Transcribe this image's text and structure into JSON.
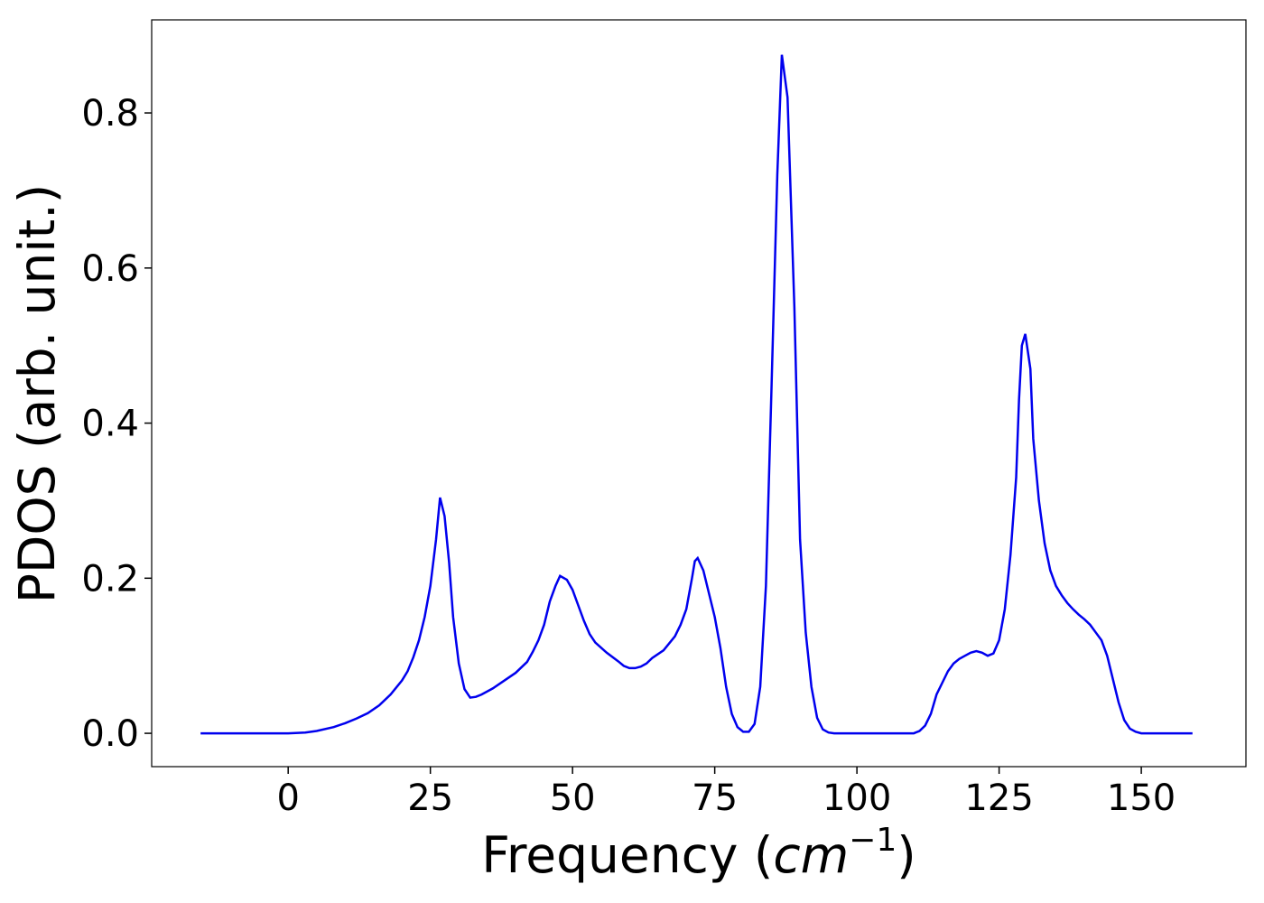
{
  "chart_data": {
    "type": "line",
    "xlabel": [
      "Frequency (",
      "cm",
      "−1",
      ")"
    ],
    "ylabel": "PDOS (arb. unit.)",
    "xlim": [
      -24,
      168.4
    ],
    "ylim": [
      -0.043,
      0.92
    ],
    "xticks": [
      0,
      25,
      50,
      75,
      100,
      125,
      150
    ],
    "yticks": [
      {
        "value": 0,
        "label": "0.0"
      },
      0.2,
      0.4,
      0.6,
      0.8
    ],
    "grid": false,
    "series": [
      {
        "color": "#0000ee",
        "x": [
          -15.4,
          -10,
          -5,
          0,
          3,
          5,
          8,
          10,
          12,
          14,
          16,
          18,
          20,
          21,
          22,
          23,
          24,
          25,
          26,
          26.7,
          27.5,
          28.3,
          29,
          30,
          31,
          32,
          33,
          34,
          36,
          38,
          40,
          42,
          43,
          44,
          45,
          46,
          47,
          47.8,
          49,
          50,
          51,
          52,
          53,
          54,
          56,
          58,
          59,
          60,
          61,
          62,
          63,
          64,
          66,
          68,
          69,
          70,
          71,
          71.5,
          72,
          73,
          74,
          75,
          76,
          77,
          78,
          79,
          80,
          81,
          82,
          83,
          84,
          85,
          86,
          86.8,
          87.8,
          89,
          90,
          91,
          92,
          93,
          94,
          95,
          96,
          100,
          105,
          110,
          111,
          112,
          113,
          114,
          115,
          116,
          117,
          118,
          119,
          120,
          121,
          122,
          123,
          124,
          125,
          126,
          127,
          128,
          128.5,
          129,
          129.6,
          130.5,
          131,
          132,
          133,
          134,
          135,
          136,
          137,
          138,
          139,
          140,
          141,
          142,
          143,
          144,
          145,
          146,
          147,
          148,
          149,
          150,
          155,
          159
        ],
        "values": [
          0,
          0,
          0,
          0,
          0.001,
          0.003,
          0.008,
          0.013,
          0.019,
          0.026,
          0.036,
          0.05,
          0.068,
          0.08,
          0.098,
          0.12,
          0.15,
          0.19,
          0.25,
          0.304,
          0.28,
          0.22,
          0.15,
          0.09,
          0.057,
          0.046,
          0.047,
          0.05,
          0.058,
          0.068,
          0.078,
          0.092,
          0.105,
          0.12,
          0.14,
          0.17,
          0.19,
          0.203,
          0.198,
          0.185,
          0.165,
          0.145,
          0.128,
          0.117,
          0.104,
          0.093,
          0.087,
          0.084,
          0.084,
          0.086,
          0.09,
          0.097,
          0.107,
          0.125,
          0.14,
          0.16,
          0.2,
          0.222,
          0.226,
          0.21,
          0.18,
          0.15,
          0.11,
          0.06,
          0.025,
          0.008,
          0.002,
          0.002,
          0.012,
          0.06,
          0.19,
          0.45,
          0.72,
          0.875,
          0.82,
          0.55,
          0.25,
          0.13,
          0.06,
          0.02,
          0.005,
          0.001,
          0,
          0,
          0,
          0,
          0.003,
          0.01,
          0.025,
          0.05,
          0.065,
          0.08,
          0.09,
          0.096,
          0.1,
          0.104,
          0.106,
          0.104,
          0.1,
          0.103,
          0.12,
          0.16,
          0.23,
          0.33,
          0.43,
          0.5,
          0.515,
          0.47,
          0.38,
          0.3,
          0.245,
          0.21,
          0.19,
          0.178,
          0.168,
          0.16,
          0.153,
          0.147,
          0.14,
          0.13,
          0.12,
          0.1,
          0.07,
          0.04,
          0.017,
          0.006,
          0.002,
          0,
          0,
          0
        ]
      }
    ]
  }
}
